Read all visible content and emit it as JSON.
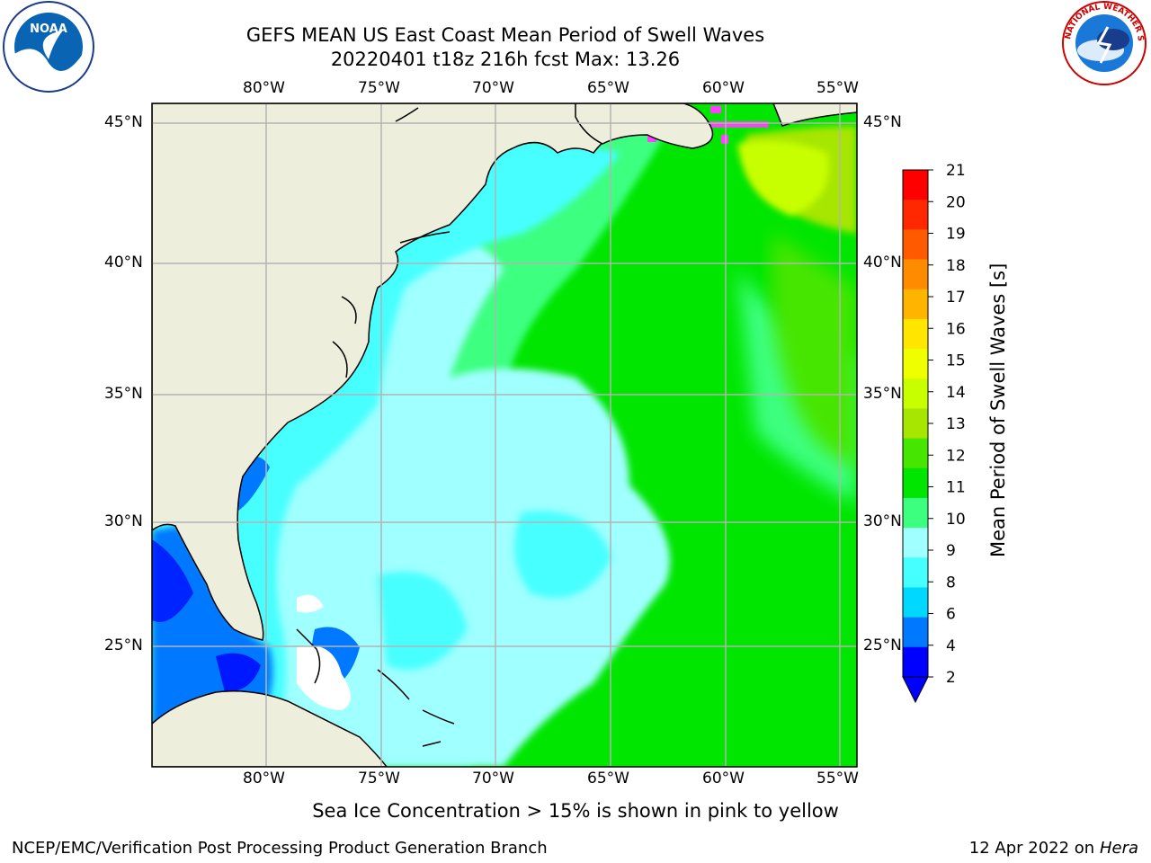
{
  "header": {
    "title_line1": "GEFS MEAN US East Coast Mean Period of Swell Waves",
    "title_line2": "20220401 t18z 216h fcst   Max: 13.26"
  },
  "logos": {
    "left": {
      "icon": "noaa-logo-icon",
      "text": "NOAA"
    },
    "right": {
      "icon": "nws-logo-icon",
      "text": "NATIONAL WEATHER SERVICE"
    }
  },
  "map": {
    "lon_labels": [
      "80°W",
      "75°W",
      "70°W",
      "65°W",
      "60°W",
      "55°W"
    ],
    "lat_labels": [
      "45°N",
      "40°N",
      "35°N",
      "30°N",
      "25°N"
    ],
    "land_color": "#eeeedc",
    "grid_color": "#b4b4b4"
  },
  "colorbar": {
    "label": "Mean Period of Swell Waves [s]",
    "ticks": [
      "2",
      "4",
      "6",
      "8",
      "9",
      "10",
      "11",
      "12",
      "13",
      "14",
      "15",
      "16",
      "17",
      "18",
      "19",
      "20",
      "21"
    ],
    "colors": [
      "#0000ff",
      "#0078ff",
      "#00d8ff",
      "#46ffff",
      "#a0ffff",
      "#3cff80",
      "#00e600",
      "#46e600",
      "#a6e600",
      "#c8ff00",
      "#f0ff00",
      "#ffe600",
      "#ffb400",
      "#ff8c00",
      "#ff5a00",
      "#ff2800",
      "#ff0000"
    ],
    "underflow_color": "#0000ff"
  },
  "note": "Sea Ice Concentration > 15% is shown in pink to yellow",
  "footer": {
    "left": "NCEP/EMC/Verification Post Processing Product Generation Branch",
    "right_date": "12 Apr 2022 on ",
    "right_host": "Hera"
  }
}
